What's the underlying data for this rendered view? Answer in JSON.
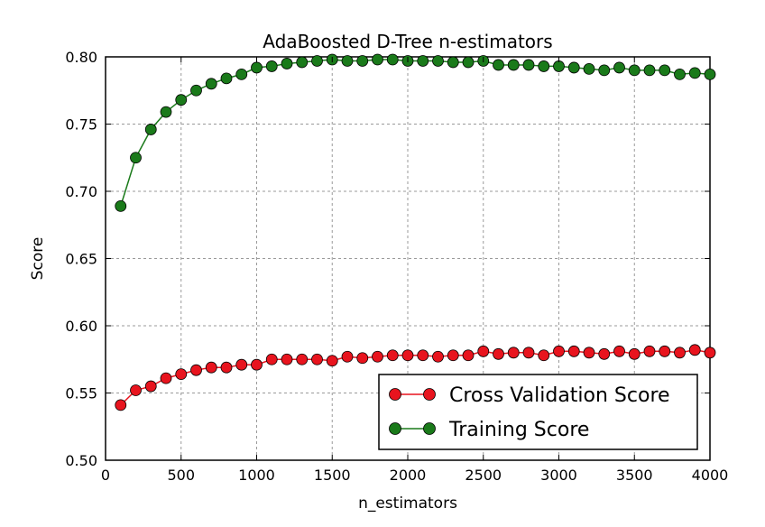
{
  "chart_data": {
    "type": "line",
    "title": "AdaBoosted D-Tree n-estimators",
    "xlabel": "n_estimators",
    "ylabel": "Score",
    "xlim": [
      0,
      4000
    ],
    "ylim": [
      0.5,
      0.8
    ],
    "xticks": [
      "0",
      "500",
      "1000",
      "1500",
      "2000",
      "2500",
      "3000",
      "3500",
      "4000"
    ],
    "yticks": [
      "0.50",
      "0.55",
      "0.60",
      "0.65",
      "0.70",
      "0.75",
      "0.80"
    ],
    "grid": true,
    "legend_position": "lower-right",
    "x": [
      100,
      200,
      300,
      400,
      500,
      600,
      700,
      800,
      900,
      1000,
      1100,
      1200,
      1300,
      1400,
      1500,
      1600,
      1700,
      1800,
      1900,
      2000,
      2100,
      2200,
      2300,
      2400,
      2500,
      2600,
      2700,
      2800,
      2900,
      3000,
      3100,
      3200,
      3300,
      3400,
      3500,
      3600,
      3700,
      3800,
      3900,
      4000
    ],
    "series": [
      {
        "name": "Cross Validation Score",
        "color": "#e8141e",
        "values": [
          0.541,
          0.552,
          0.555,
          0.561,
          0.564,
          0.567,
          0.569,
          0.569,
          0.571,
          0.571,
          0.575,
          0.575,
          0.575,
          0.575,
          0.574,
          0.577,
          0.576,
          0.577,
          0.578,
          0.578,
          0.578,
          0.577,
          0.578,
          0.578,
          0.581,
          0.579,
          0.58,
          0.58,
          0.578,
          0.581,
          0.581,
          0.58,
          0.579,
          0.581,
          0.579,
          0.581,
          0.581,
          0.58,
          0.582,
          0.58
        ]
      },
      {
        "name": "Training Score",
        "color": "#1a7a1a",
        "values": [
          0.689,
          0.725,
          0.746,
          0.759,
          0.768,
          0.775,
          0.78,
          0.784,
          0.787,
          0.792,
          0.793,
          0.795,
          0.796,
          0.797,
          0.798,
          0.797,
          0.797,
          0.798,
          0.798,
          0.797,
          0.797,
          0.797,
          0.796,
          0.796,
          0.797,
          0.794,
          0.794,
          0.794,
          0.793,
          0.793,
          0.792,
          0.791,
          0.79,
          0.792,
          0.79,
          0.79,
          0.79,
          0.787,
          0.788,
          0.787
        ]
      }
    ]
  }
}
